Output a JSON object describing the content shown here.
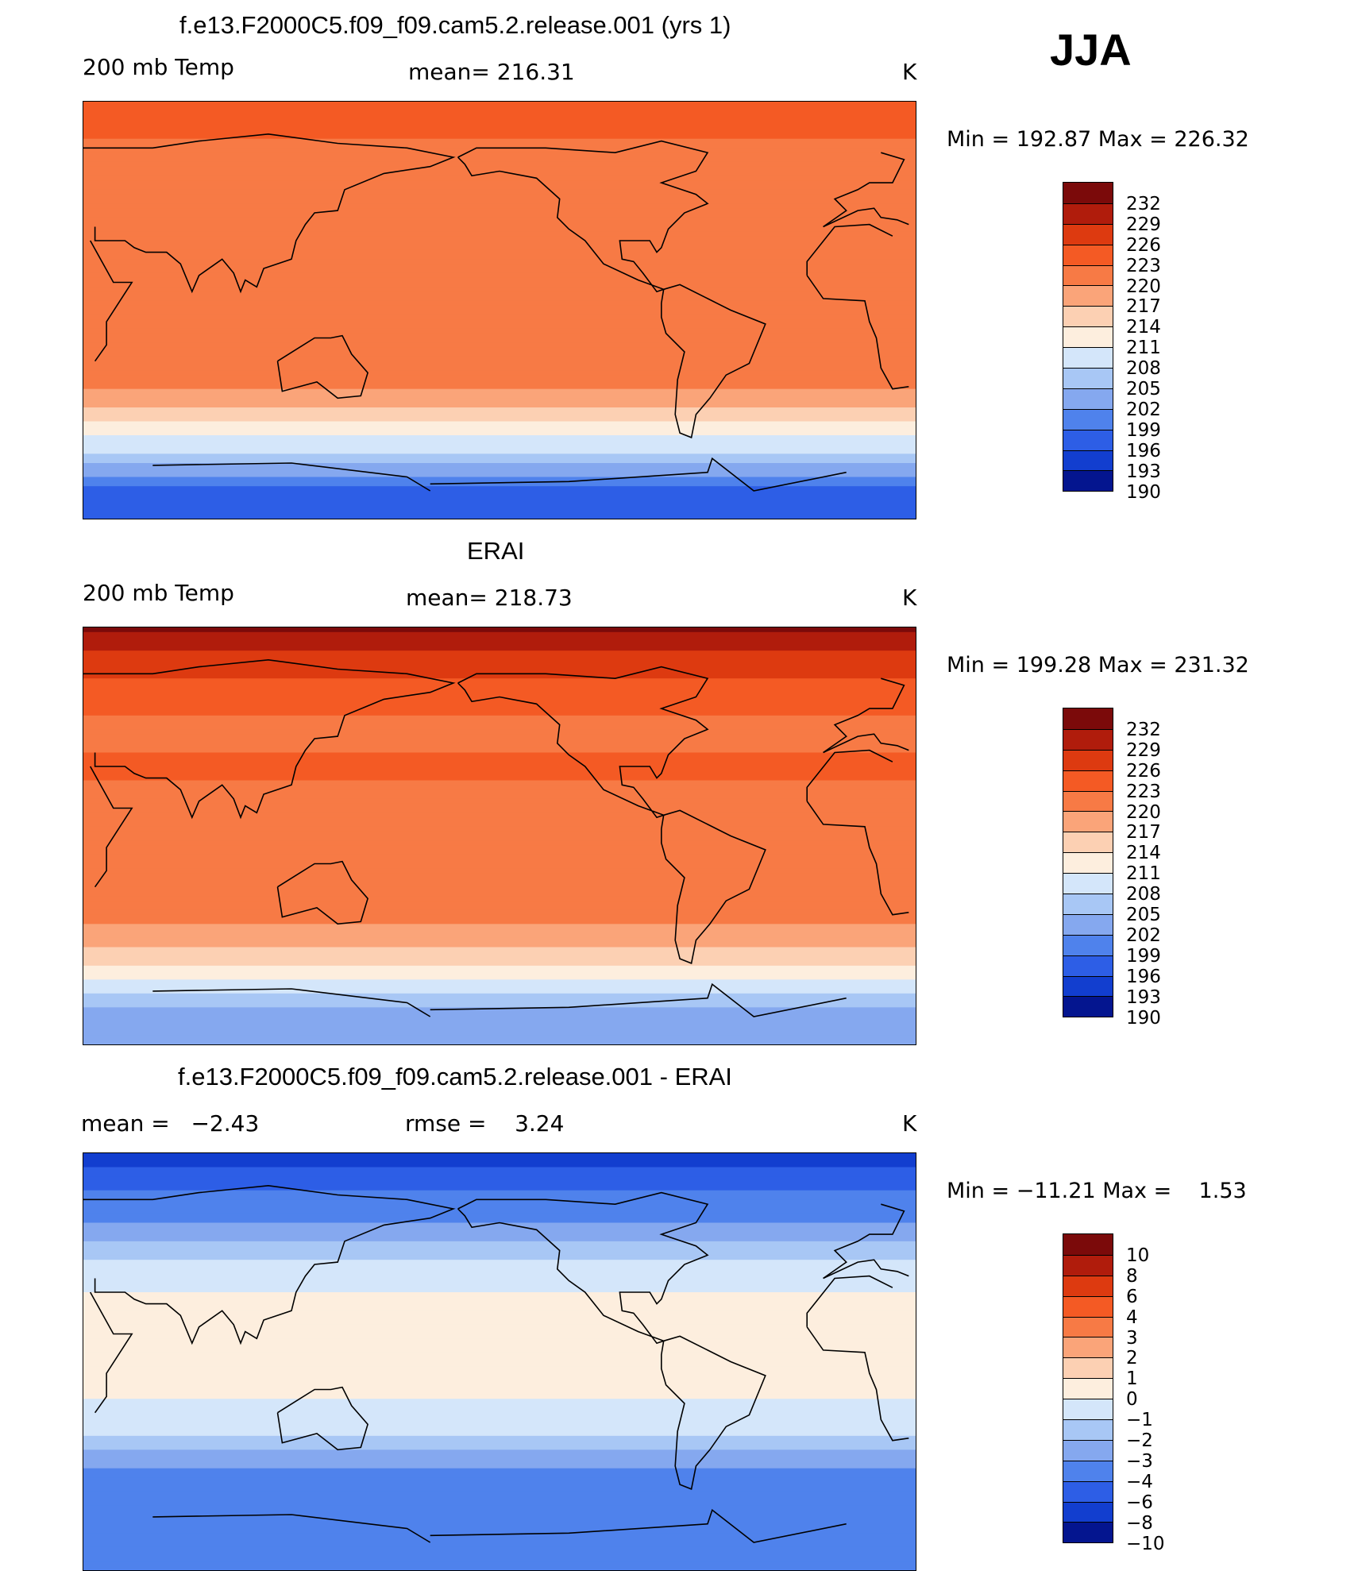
{
  "season": "JJA",
  "panels": [
    {
      "title": "f.e13.F2000C5.f09_f09.cam5.2.release.001 (yrs 1)",
      "left_label": "200 mb Temp",
      "center_label": "mean= 216.31",
      "unit": "K",
      "minmax": "Min = 192.87 Max = 226.32"
    },
    {
      "title": "ERAI",
      "left_label": "200 mb Temp",
      "center_label": "mean= 218.73",
      "unit": "K",
      "minmax": "Min = 199.28 Max = 231.32"
    },
    {
      "title": "f.e13.F2000C5.f09_f09.cam5.2.release.001 - ERAI",
      "left_label": "mean =   −2.43",
      "center_label": "rmse =    3.24",
      "unit": "K",
      "minmax": "Min = −11.21 Max =    1.53"
    }
  ],
  "chart_data": [
    {
      "type": "heatmap",
      "title": "f.e13.F2000C5.f09_f09.cam5.2.release.001 (yrs 1)",
      "variable": "200 mb Temp",
      "unit": "K",
      "mean": 216.31,
      "min": 192.87,
      "max": 226.32,
      "colorbar_levels": [
        "232",
        "229",
        "226",
        "223",
        "220",
        "217",
        "214",
        "211",
        "208",
        "205",
        "202",
        "199",
        "196",
        "193",
        "190"
      ],
      "colorbar_colors": [
        "#7b0a0a",
        "#b01c0c",
        "#dd3a10",
        "#f45a24",
        "#f77a45",
        "#faa479",
        "#fcd0b3",
        "#fdeede",
        "#d4e6fa",
        "#a8c7f5",
        "#85a8ef",
        "#4f82ec",
        "#2d5ee6",
        "#123ecf",
        "#04158f"
      ],
      "zonal_profile_lat_deg": [
        90,
        75,
        60,
        45,
        30,
        15,
        0,
        -15,
        -30,
        -45,
        -60,
        -75,
        -90
      ],
      "zonal_profile_K": [
        221,
        220,
        218,
        217,
        219,
        217,
        217,
        217,
        218,
        212,
        205,
        196,
        193
      ]
    },
    {
      "type": "heatmap",
      "title": "ERAI",
      "variable": "200 mb Temp",
      "unit": "K",
      "mean": 218.73,
      "min": 199.28,
      "max": 231.32,
      "colorbar_levels": [
        "232",
        "229",
        "226",
        "223",
        "220",
        "217",
        "214",
        "211",
        "208",
        "205",
        "202",
        "199",
        "196",
        "193",
        "190"
      ],
      "colorbar_colors": [
        "#7b0a0a",
        "#b01c0c",
        "#dd3a10",
        "#f45a24",
        "#f77a45",
        "#faa479",
        "#fcd0b3",
        "#fdeede",
        "#d4e6fa",
        "#a8c7f5",
        "#85a8ef",
        "#4f82ec",
        "#2d5ee6",
        "#123ecf",
        "#04158f"
      ],
      "zonal_profile_lat_deg": [
        90,
        75,
        60,
        45,
        30,
        15,
        0,
        -15,
        -30,
        -45,
        -60,
        -75,
        -90
      ],
      "zonal_profile_K": [
        229,
        224,
        221,
        219,
        221,
        218,
        218,
        219,
        219,
        215,
        209,
        201,
        200
      ]
    },
    {
      "type": "heatmap",
      "title": "f.e13.F2000C5.f09_f09.cam5.2.release.001 - ERAI",
      "variable": "200 mb Temp difference",
      "unit": "K",
      "mean": -2.43,
      "rmse": 3.24,
      "min": -11.21,
      "max": 1.53,
      "colorbar_levels": [
        "10",
        "8",
        "6",
        "4",
        "3",
        "2",
        "1",
        "0",
        "−1",
        "−2",
        "−3",
        "−4",
        "−6",
        "−8",
        "−10"
      ],
      "colorbar_colors": [
        "#7b0a0a",
        "#b01c0c",
        "#dd3a10",
        "#f45a24",
        "#f77a45",
        "#faa479",
        "#fcd0b3",
        "#fdeede",
        "#d4e6fa",
        "#a8c7f5",
        "#85a8ef",
        "#4f82ec",
        "#2d5ee6",
        "#123ecf",
        "#04158f"
      ],
      "zonal_profile_lat_deg": [
        90,
        75,
        60,
        45,
        30,
        15,
        0,
        -15,
        -30,
        -45,
        -60,
        -75,
        -90
      ],
      "zonal_profile_K": [
        -9,
        -6,
        -4,
        -2,
        -1,
        -1,
        -1,
        -1,
        -2,
        -4,
        -5,
        -6,
        -6
      ]
    }
  ]
}
